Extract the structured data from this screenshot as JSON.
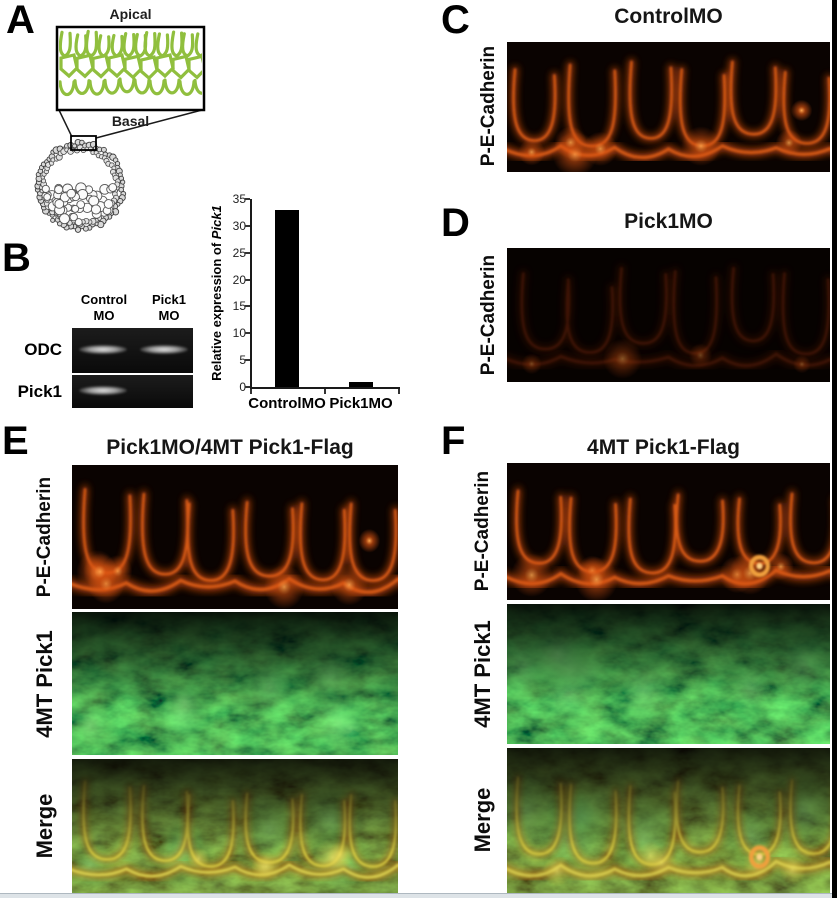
{
  "colors": {
    "diagram_green": "#90bf3e",
    "fluor_red": "#c84a12",
    "fluor_green": "#3fae4a",
    "bar_color": "#000000"
  },
  "panels": {
    "A": {
      "label": "A",
      "apical": "Apical",
      "basal": "Basal"
    },
    "B": {
      "label": "B",
      "lanes": [
        {
          "line1": "Control",
          "line2": "MO"
        },
        {
          "line1": "Pick1",
          "line2": "MO"
        }
      ],
      "gels": [
        {
          "name": "ODC",
          "bands": [
            "strong",
            "strong"
          ]
        },
        {
          "name": "Pick1",
          "bands": [
            "strong",
            "absent"
          ]
        }
      ]
    },
    "C": {
      "label": "C",
      "title": "ControlMO",
      "side_label": "P-E-Cadherin"
    },
    "D": {
      "label": "D",
      "title": "Pick1MO",
      "side_label": "P-E-Cadherin"
    },
    "E": {
      "label": "E",
      "title": "Pick1MO/4MT Pick1-Flag",
      "row_labels": [
        "P-E-Cadherin",
        "4MT Pick1",
        "Merge"
      ]
    },
    "F": {
      "label": "F",
      "title": "4MT Pick1-Flag",
      "row_labels": [
        "P-E-Cadherin",
        "4MT Pick1",
        "Merge"
      ]
    }
  },
  "chart_data": {
    "type": "bar",
    "categories": [
      "ControlMO",
      "Pick1MO"
    ],
    "values": [
      33,
      1
    ],
    "title": "",
    "xlabel": "",
    "ylabel": "Relative expression of Pick1",
    "ylabel_prefix": "Relative expression of ",
    "ylabel_italic": "Pick1",
    "ylim": [
      0,
      35
    ],
    "yticks": [
      0,
      5,
      10,
      15,
      20,
      25,
      30,
      35
    ],
    "grid": false,
    "legend": "none",
    "bar_color": "#000000"
  }
}
